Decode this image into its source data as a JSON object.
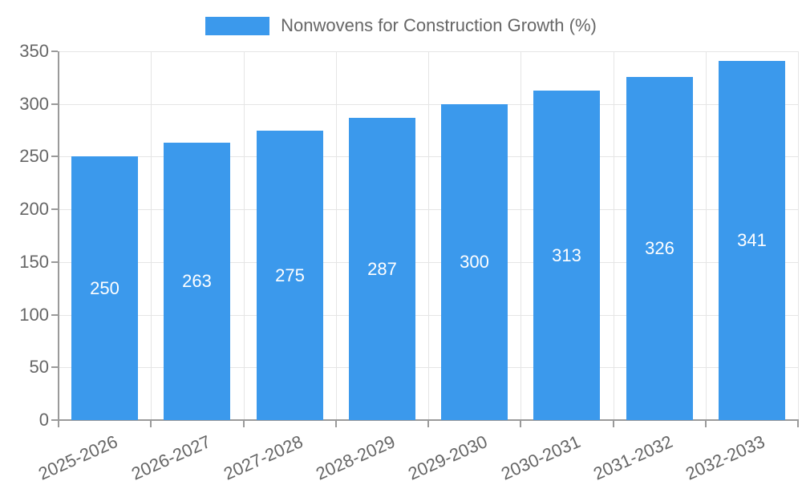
{
  "legend": {
    "label": "Nonwovens for Construction Growth (%)"
  },
  "chart_data": {
    "type": "bar",
    "title": "Nonwovens for Construction Growth (%)",
    "categories": [
      "2025-2026",
      "2026-2027",
      "2027-2028",
      "2028-2029",
      "2029-2030",
      "2030-2031",
      "2031-2032",
      "2032-2033"
    ],
    "values": [
      250,
      263,
      275,
      287,
      300,
      313,
      326,
      341
    ],
    "xlabel": "",
    "ylabel": "",
    "ylim": [
      0,
      350
    ],
    "yticks": [
      0,
      50,
      100,
      150,
      200,
      250,
      300,
      350
    ],
    "grid": true,
    "legend_position": "top-center",
    "x_label_rotation_deg": -24,
    "bar_fraction_of_slot": 0.72,
    "value_labels": "inside-center",
    "colors": {
      "bar": "#3b99ec",
      "value_label": "#ffffff",
      "axis_line": "#9a9a9a",
      "grid_line": "#e5e5e5",
      "tick_label": "#666666",
      "legend_text": "#666666",
      "background": "#ffffff"
    }
  }
}
